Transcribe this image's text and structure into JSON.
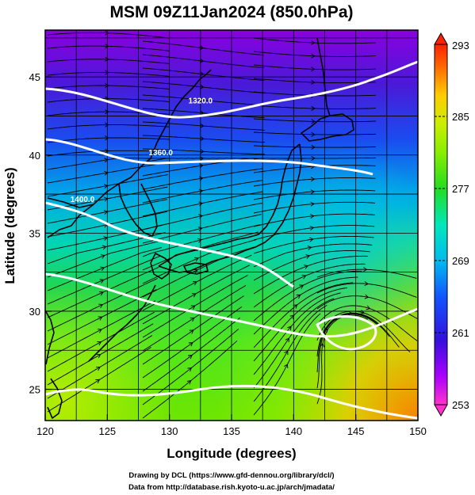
{
  "title": "MSM 09Z11Jan2024 (850.0hPa)",
  "x_axis": {
    "label": "Longitude (degrees)",
    "range": [
      120,
      150
    ],
    "ticks": [
      "120",
      "125",
      "130",
      "135",
      "140",
      "145",
      "150"
    ]
  },
  "y_axis": {
    "label": "Latitude  (degrees)",
    "range": [
      23,
      48
    ],
    "ticks": [
      "25",
      "30",
      "35",
      "40",
      "45"
    ]
  },
  "colorbar": {
    "range": [
      253,
      293
    ],
    "labels": [
      "293",
      "285",
      "277",
      "269",
      "261",
      "253"
    ]
  },
  "contours": {
    "color": "#ffffff",
    "labels": [
      {
        "text": "1320.0",
        "lon": 132.5,
        "lat": 43.3
      },
      {
        "text": "1360.0",
        "lon": 129.3,
        "lat": 40.0
      },
      {
        "text": "1400.0",
        "lon": 123.0,
        "lat": 37.0
      }
    ]
  },
  "credits": {
    "line1": "Drawing by DCL (https://www.gfd-dennou.org/library/dcl/)",
    "line2": "Data from http://database.rish.kyoto-u.ac.jp/arch/jmadata/"
  }
}
